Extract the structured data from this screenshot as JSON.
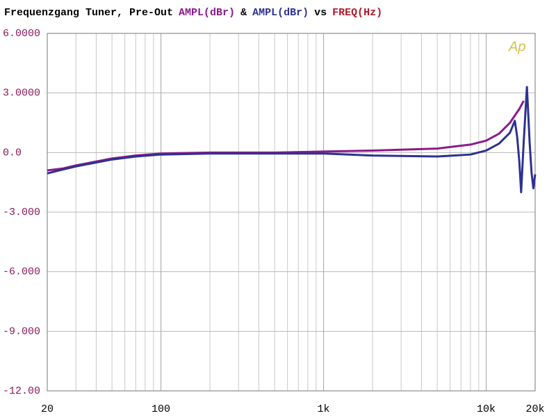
{
  "chart_data": {
    "type": "line",
    "title_parts": [
      {
        "text": "Frequenzgang Tuner, Pre-Out",
        "color": "#000000",
        "bold": false
      },
      {
        "text": "AMPL(dBr)",
        "color": "#8b1a8b",
        "bold": false
      },
      {
        "text": "&",
        "color": "#000000",
        "bold": false
      },
      {
        "text": "AMPL(dBr)",
        "color": "#2e3192",
        "bold": true
      },
      {
        "text": "vs",
        "color": "#000000",
        "bold": false
      },
      {
        "text": "FREQ(Hz)",
        "color": "#b0182a",
        "bold": false
      }
    ],
    "logo": "Ap",
    "x_log": true,
    "minor_grid": true,
    "grid": true,
    "xlim": [
      20,
      20000
    ],
    "xticks": [
      20,
      100,
      {
        "value": 1000,
        "label": "1k"
      },
      {
        "value": 10000,
        "label": "10k"
      },
      {
        "value": 20000,
        "label": "20k"
      }
    ],
    "ylim": [
      -12,
      6
    ],
    "yticks": [
      {
        "value": 6,
        "label": "6.0000"
      },
      {
        "value": 3,
        "label": "3.0000"
      },
      {
        "value": 0,
        "label": "0.0"
      },
      {
        "value": -3,
        "label": "-3.000"
      },
      {
        "value": -6,
        "label": "-6.000"
      },
      {
        "value": -9,
        "label": "-9.000"
      },
      {
        "value": -12,
        "label": "-12.00"
      }
    ],
    "series": [
      {
        "name": "AMPL(dBr)",
        "color": "#8b1a8b",
        "x": [
          20,
          25,
          30,
          40,
          50,
          70,
          100,
          200,
          500,
          1000,
          2000,
          5000,
          8000,
          10000,
          12000,
          14000,
          16000,
          17000
        ],
        "values": [
          -0.9,
          -0.8,
          -0.65,
          -0.45,
          -0.3,
          -0.15,
          -0.05,
          0,
          0,
          0.05,
          0.1,
          0.2,
          0.4,
          0.6,
          0.95,
          1.5,
          2.2,
          2.6
        ]
      },
      {
        "name": "AMPL(dBr)",
        "color": "#2e3192",
        "x": [
          20,
          25,
          30,
          40,
          50,
          70,
          100,
          200,
          1000,
          2000,
          5000,
          8000,
          10000,
          12000,
          14000,
          15000,
          15500,
          16000,
          16400,
          17000,
          17800,
          18500,
          19000,
          19500,
          20000
        ],
        "values": [
          -1.05,
          -0.85,
          -0.7,
          -0.5,
          -0.35,
          -0.2,
          -0.1,
          -0.05,
          -0.05,
          -0.15,
          -0.2,
          -0.1,
          0.1,
          0.45,
          1.0,
          1.6,
          0.8,
          -0.5,
          -2.0,
          0.5,
          3.3,
          0.5,
          -1.0,
          -1.8,
          -1.1
        ]
      }
    ]
  }
}
